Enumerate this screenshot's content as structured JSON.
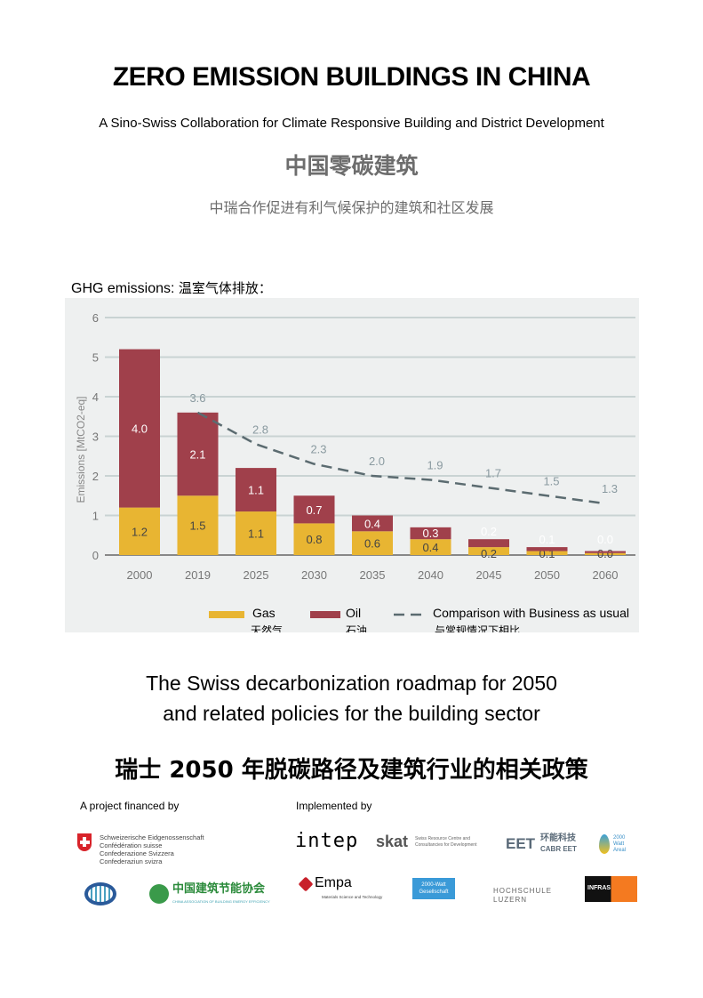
{
  "header": {
    "title": "ZERO EMISSION BUILDINGS IN CHINA",
    "subtitle": "A Sino-Swiss Collaboration for Climate Responsive Building and District Development",
    "title_cn": "中国零碳建筑",
    "subtitle_cn": "中瑞合作促进有利气候保护的建筑和社区发展"
  },
  "chart_label": {
    "en": "GHG emissions:",
    "cn": "温室气体排放："
  },
  "chart_data": {
    "type": "bar",
    "stacked": true,
    "categories": [
      "2000",
      "2019",
      "2025",
      "2030",
      "2035",
      "2040",
      "2045",
      "2050",
      "2060"
    ],
    "ylabel": "Emissions [MtCO2-eq]",
    "ylim": [
      0,
      6
    ],
    "yticks": [
      0,
      1,
      2,
      3,
      4,
      5,
      6
    ],
    "grid": true,
    "legend_placement": "bottom",
    "series": [
      {
        "name": "Gas",
        "name_cn": "天然气",
        "color": "#e8b532",
        "values": [
          1.2,
          1.5,
          1.1,
          0.8,
          0.6,
          0.4,
          0.2,
          0.1,
          0.0
        ]
      },
      {
        "name": "Oil",
        "name_cn": "石油",
        "color": "#a0404b",
        "values": [
          4.0,
          2.1,
          1.1,
          0.7,
          0.4,
          0.3,
          0.2,
          0.1,
          0.0
        ]
      }
    ],
    "line": {
      "name": "Comparison with Business as usual",
      "name_cn": "与常规情况下相比",
      "color": "#5b6b70",
      "categories": [
        "2019",
        "2025",
        "2030",
        "2035",
        "2040",
        "2045",
        "2050",
        "2060"
      ],
      "values": [
        3.6,
        2.8,
        2.3,
        2.0,
        1.9,
        1.7,
        1.5,
        1.3
      ]
    }
  },
  "roadmap": {
    "line1": "The Swiss decarbonization roadmap for 2050",
    "line2": "and related policies for the building sector",
    "cn": "瑞士 2050 年脱碳路径及建筑行业的相关政策"
  },
  "footer": {
    "financed_label": "A project financed by",
    "implemented_label": "Implemented by",
    "swiss_lines": [
      "Schweizerische Eidgenossenschaft",
      "Confédération suisse",
      "Confederazione Svizzera",
      "Confederaziun svizra"
    ],
    "cabee_cn": "中国建筑节能协会",
    "cabee_en": "CHINA ASSOCIATION OF BUILDING ENERGY EFFICIENCY",
    "intep": "intep",
    "skat": "skat",
    "skat_desc": "Swiss Resource Centre and Consultancies for Development",
    "eet": "EET",
    "eet_cn": "环能科技",
    "eet_en": "CABR EET",
    "watt_areal": "2000 Watt Areal",
    "empa": "Empa",
    "empa_desc": "Materials Science and Technology",
    "watt_ges": "2000-Watt Gesellschaft",
    "hslu1": "HOCHSCHULE",
    "hslu2": "LUZERN",
    "infras": "INFRAS"
  }
}
